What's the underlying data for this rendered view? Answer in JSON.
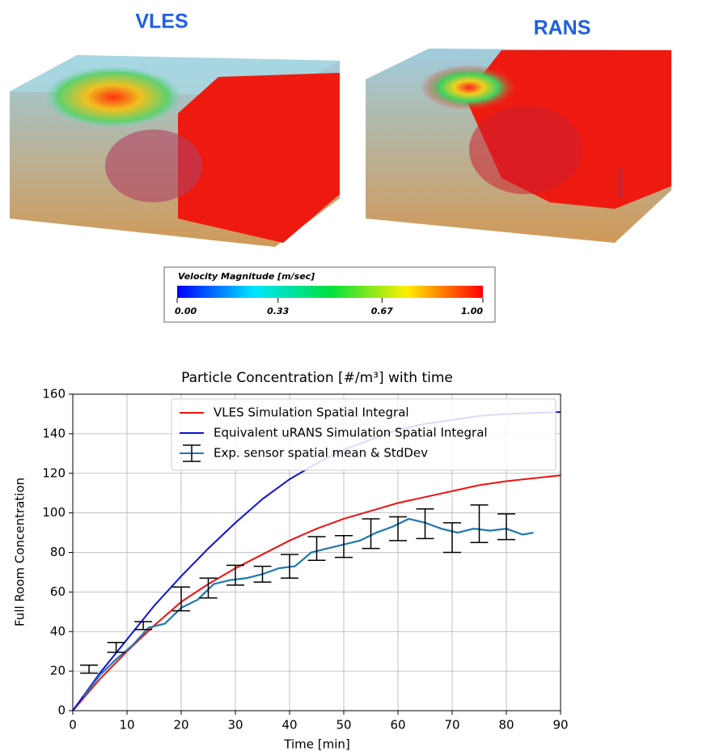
{
  "images": [
    {
      "label": "VLES"
    },
    {
      "label": "RANS"
    }
  ],
  "colorbar": {
    "title": "Velocity Magnitude [m/sec]",
    "lim": [
      0,
      1
    ],
    "colors": [
      "#0000ff",
      "#00e5ff",
      "#00e040",
      "#ffee00",
      "#ff0000"
    ],
    "ticks": [
      {
        "value": 0,
        "label": "0.00"
      },
      {
        "value": 0.33,
        "label": "0.33"
      },
      {
        "value": 0.67,
        "label": "0.67"
      },
      {
        "value": 1,
        "label": "1.00"
      }
    ]
  },
  "chart_data": {
    "type": "line",
    "title": "Particle Concentration [#/m³] with time",
    "x_label": "Time [min]",
    "y_label": "Full Room Concentration",
    "x": [
      0,
      5,
      10,
      15,
      20,
      25,
      30,
      35,
      40,
      45,
      50,
      55,
      60,
      65,
      70,
      75,
      80,
      85,
      90
    ],
    "series": [
      {
        "name": "VLES Simulation Spatial Integral",
        "color": "#ee1111",
        "values": [
          0,
          16,
          30,
          43,
          55,
          64,
          72,
          79,
          86,
          92,
          97,
          101,
          105,
          108,
          111,
          114,
          116,
          117.5,
          119
        ]
      },
      {
        "name": "Equivalent uRANS Simulation Spatial Integral",
        "color": "#1010dd",
        "values": [
          0,
          19,
          36,
          53,
          68,
          82,
          95,
          107,
          117,
          125,
          132,
          137,
          142,
          145,
          147,
          149,
          150,
          150.5,
          151
        ]
      },
      {
        "name": "Exp. sensor spatial mean & StdDev",
        "color": "#1f77b4",
        "x": [
          2,
          5,
          8,
          11,
          14,
          17,
          20,
          23,
          26,
          29,
          32,
          35,
          38,
          41,
          44,
          47,
          50,
          53,
          56,
          59,
          62,
          65,
          68,
          71,
          74,
          77,
          80,
          83,
          85
        ],
        "values": [
          7,
          18,
          26,
          33,
          42,
          44,
          52,
          56,
          64,
          66,
          67,
          69,
          72,
          73,
          80,
          82,
          84,
          86,
          90,
          93,
          97,
          95,
          92,
          90,
          92,
          91,
          92,
          89,
          90
        ]
      }
    ],
    "error_bars": {
      "color": "#000000",
      "x": [
        3,
        8,
        13,
        20,
        25,
        30,
        35,
        40,
        45,
        50,
        55,
        60,
        65,
        70,
        75,
        80
      ],
      "values": [
        21,
        32,
        43,
        56.5,
        62,
        68.5,
        69,
        73,
        82,
        83,
        89.5,
        92,
        94.5,
        87.5,
        94.5,
        93
      ],
      "errors": [
        2,
        2.5,
        2,
        6,
        5,
        5,
        4,
        6,
        6,
        5.5,
        7.5,
        6,
        7.5,
        7.5,
        9.5,
        6.5
      ]
    },
    "xlim": [
      0,
      90
    ],
    "xticks": [
      0,
      10,
      20,
      30,
      40,
      50,
      60,
      70,
      80,
      90
    ],
    "ylim": [
      0,
      160
    ],
    "yticks": [
      0,
      20,
      40,
      60,
      80,
      100,
      120,
      140,
      160
    ],
    "grid": true,
    "legend": "upper right"
  }
}
